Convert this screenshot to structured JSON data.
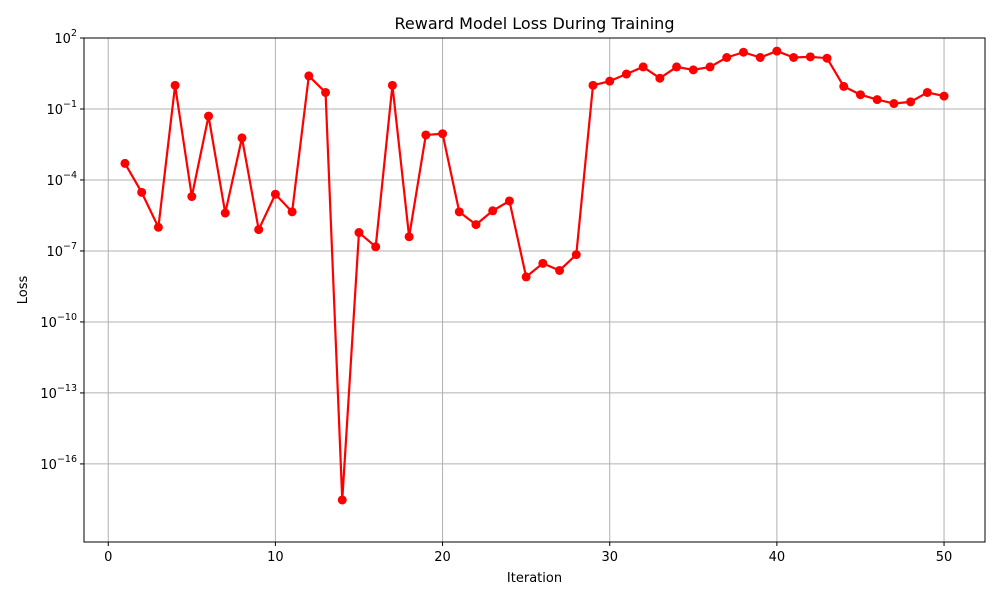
{
  "chart_data": {
    "type": "line",
    "title": "Reward Model Loss During Training",
    "xlabel": "Iteration",
    "ylabel": "Loss",
    "yscale": "log",
    "xlim": [
      -1.45,
      52.45
    ],
    "ylim_exponents": [
      -19.3,
      2
    ],
    "grid": true,
    "color": "#ff0000",
    "marker": "circle",
    "x_ticks": [
      0,
      10,
      20,
      30,
      40,
      50
    ],
    "x_tick_labels": [
      "0",
      "10",
      "20",
      "30",
      "40",
      "50"
    ],
    "y_ticks": [
      2,
      -1,
      -4,
      -7,
      -10,
      -13,
      -16
    ],
    "y_tick_labels": [
      {
        "base": "10",
        "exp": "2"
      },
      {
        "base": "10",
        "exp": "−1"
      },
      {
        "base": "10",
        "exp": "−4"
      },
      {
        "base": "10",
        "exp": "−7"
      },
      {
        "base": "10",
        "exp": "−10"
      },
      {
        "base": "10",
        "exp": "−13"
      },
      {
        "base": "10",
        "exp": "−16"
      }
    ],
    "x": [
      1,
      2,
      3,
      4,
      5,
      6,
      7,
      8,
      9,
      10,
      11,
      12,
      13,
      14,
      15,
      16,
      17,
      18,
      19,
      20,
      21,
      22,
      23,
      24,
      25,
      26,
      27,
      28,
      29,
      30,
      31,
      32,
      33,
      34,
      35,
      36,
      37,
      38,
      39,
      40,
      41,
      42,
      43,
      44,
      45,
      46,
      47,
      48,
      49,
      50
    ],
    "y": [
      0.0005,
      3e-05,
      1e-06,
      1.0,
      2e-05,
      0.05,
      4e-06,
      0.006,
      8e-07,
      2.5e-05,
      4.5e-06,
      2.5,
      0.5,
      3e-18,
      6e-07,
      1.5e-07,
      1.0,
      4e-07,
      0.008,
      0.009,
      4.5e-06,
      1.3e-06,
      5e-06,
      1.3e-05,
      8e-09,
      3e-08,
      1.5e-08,
      7e-08,
      1.0,
      1.5,
      3.0,
      6.0,
      2.0,
      6.0,
      4.5,
      6.0,
      15.0,
      25.0,
      15.0,
      28.0,
      15.0,
      16.0,
      14.0,
      0.9,
      0.4,
      0.25,
      0.17,
      0.2,
      0.5,
      0.35
    ]
  }
}
